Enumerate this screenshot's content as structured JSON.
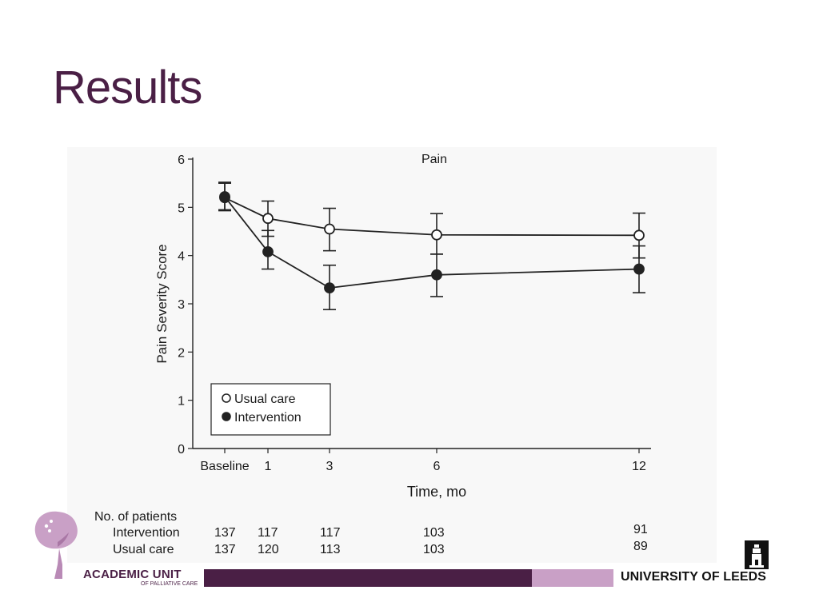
{
  "slide": {
    "title": "Results"
  },
  "chart_data": {
    "type": "line",
    "title": "Pain",
    "xlabel": "Time, mo",
    "ylabel": "Pain Severity Score",
    "ylim": [
      0,
      6
    ],
    "y_ticks": [
      0,
      1,
      2,
      3,
      4,
      5,
      6
    ],
    "x": [
      0,
      1,
      3,
      6,
      12
    ],
    "x_tick_labels": [
      "Baseline",
      "1",
      "3",
      "6",
      "12"
    ],
    "legend_position": "bottom-left",
    "grid": false,
    "series": [
      {
        "name": "Usual care",
        "marker": "open-circle",
        "values": [
          5.2,
          4.77,
          4.55,
          4.43,
          4.42
        ],
        "error_low": [
          4.93,
          4.4,
          4.1,
          4.03,
          3.95
        ],
        "error_high": [
          5.52,
          5.13,
          4.98,
          4.87,
          4.88
        ]
      },
      {
        "name": "Intervention",
        "marker": "filled-circle",
        "values": [
          5.22,
          4.08,
          3.33,
          3.6,
          3.72
        ],
        "error_low": [
          4.95,
          3.72,
          2.88,
          3.15,
          3.23
        ],
        "error_high": [
          5.5,
          4.52,
          3.8,
          4.03,
          4.2
        ]
      }
    ],
    "patient_table": {
      "header": "No. of patients",
      "rows": [
        {
          "label": "Intervention",
          "counts": [
            "137",
            "117",
            "117",
            "103",
            "91"
          ]
        },
        {
          "label": "Usual care",
          "counts": [
            "137",
            "120",
            "113",
            "103",
            "89"
          ]
        }
      ]
    }
  },
  "footer": {
    "academic_unit": "ACADEMIC UNIT",
    "academic_unit_sub": "OF PALLIATIVE CARE",
    "university": "UNIVERSITY OF LEEDS"
  },
  "colors": {
    "brand_dark": "#4a1f45",
    "brand_light": "#c9a0c6"
  }
}
